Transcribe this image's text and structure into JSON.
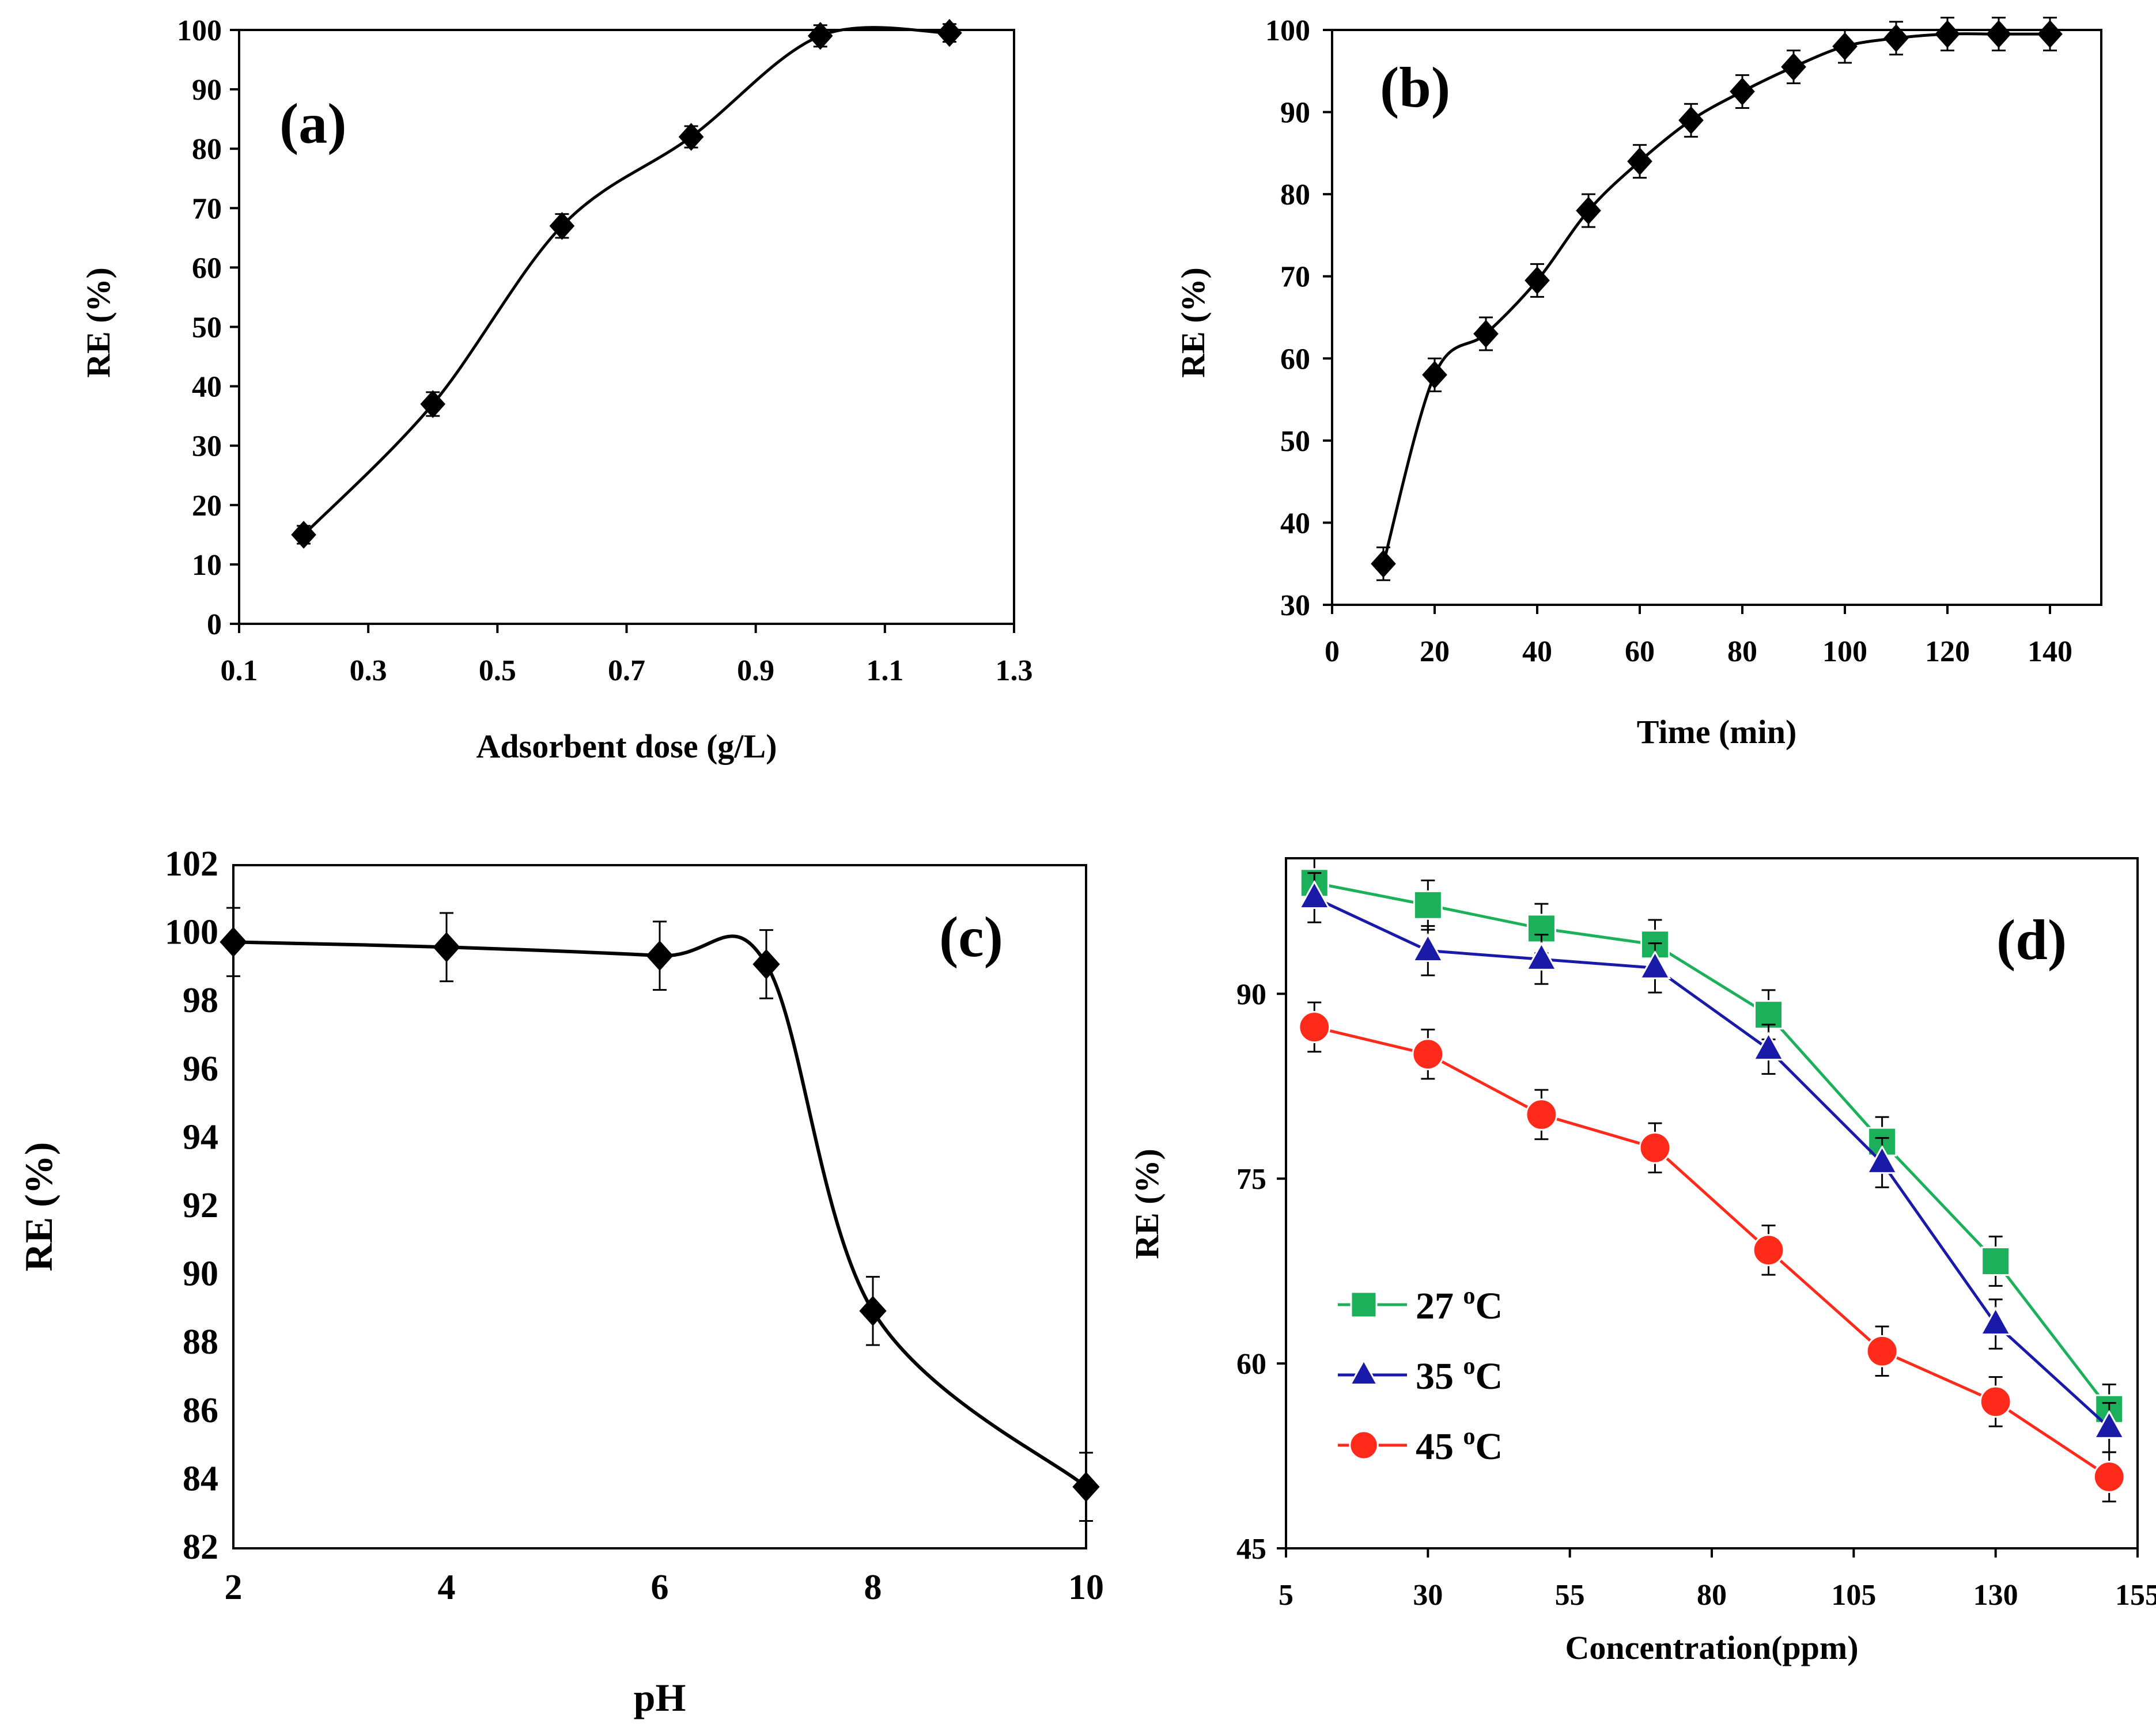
{
  "chart_data": [
    {
      "id": "a",
      "type": "line",
      "panel_label": "(a)",
      "title": "",
      "xlabel": "Adsorbent dose (g/L)",
      "ylabel": "RE (%)",
      "xlim": [
        0.1,
        1.3
      ],
      "ylim": [
        0,
        100
      ],
      "xticks": [
        "0.1",
        "0.3",
        "0.5",
        "0.7",
        "0.9",
        "1.1",
        "1.3"
      ],
      "yticks": [
        "0",
        "10",
        "20",
        "30",
        "40",
        "50",
        "60",
        "70",
        "80",
        "90",
        "100"
      ],
      "grid": false,
      "smooth": true,
      "series": [
        {
          "name": "RE",
          "color": "#000000",
          "marker": "diamond",
          "x": [
            0.2,
            0.4,
            0.6,
            0.8,
            1.0,
            1.2
          ],
          "y": [
            15,
            37,
            67,
            82,
            99,
            99.5
          ],
          "error": [
            1.5,
            2,
            2,
            1.8,
            1.8,
            1.5
          ]
        }
      ]
    },
    {
      "id": "b",
      "type": "line",
      "panel_label": "(b)",
      "title": "",
      "xlabel": "Time (min)",
      "ylabel": "RE (%)",
      "xlim": [
        0,
        150
      ],
      "ylim": [
        30,
        100
      ],
      "xticks": [
        "0",
        "20",
        "40",
        "60",
        "80",
        "100",
        "120",
        "140"
      ],
      "yticks": [
        "30",
        "40",
        "50",
        "60",
        "70",
        "80",
        "90",
        "100"
      ],
      "grid": false,
      "smooth": true,
      "series": [
        {
          "name": "RE",
          "color": "#000000",
          "marker": "diamond",
          "x": [
            10,
            20,
            30,
            40,
            50,
            60,
            70,
            80,
            90,
            100,
            110,
            120,
            130,
            140
          ],
          "y": [
            35,
            58,
            63,
            69.5,
            78,
            84,
            89,
            92.5,
            95.5,
            98,
            99,
            99.5,
            99.5,
            99.5
          ],
          "error": [
            2,
            2,
            2,
            2,
            2,
            2,
            2,
            2,
            2,
            2,
            2,
            2,
            2,
            2
          ]
        }
      ]
    },
    {
      "id": "c",
      "type": "line",
      "panel_label": "(c)",
      "title": "",
      "xlabel": "pH",
      "ylabel": "RE (%)",
      "xlim": [
        2,
        10
      ],
      "ylim": [
        82,
        102
      ],
      "xticks": [
        "2",
        "4",
        "6",
        "8",
        "10"
      ],
      "yticks": [
        "82",
        "84",
        "86",
        "88",
        "90",
        "92",
        "94",
        "96",
        "98",
        "100",
        "102"
      ],
      "grid": false,
      "smooth": true,
      "series": [
        {
          "name": "RE",
          "color": "#000000",
          "marker": "diamond",
          "x": [
            2,
            4,
            6,
            7,
            8,
            10
          ],
          "y": [
            99.75,
            99.6,
            99.35,
            99.1,
            88.95,
            83.8
          ],
          "error": [
            1,
            1,
            1,
            1,
            1,
            1
          ]
        }
      ]
    },
    {
      "id": "d",
      "type": "line",
      "panel_label": "(d)",
      "title": "",
      "xlabel": "Concentration(ppm)",
      "ylabel": "RE (%)",
      "xlim": [
        5,
        155
      ],
      "ylim": [
        45,
        101
      ],
      "xticks": [
        "5",
        "30",
        "55",
        "80",
        "105",
        "130",
        "155"
      ],
      "yticks": [
        "45",
        "60",
        "75",
        "90"
      ],
      "grid": false,
      "smooth": false,
      "legend_position": "bottom-left",
      "series": [
        {
          "name": "27 ",
          "unit_sup": "o",
          "unit_rest": "C",
          "color": "#1db05a",
          "marker": "square",
          "x": [
            10,
            30,
            50,
            70,
            90,
            110,
            130,
            150
          ],
          "y": [
            99,
            97.2,
            95.3,
            94,
            88.3,
            78,
            68.3,
            56.3
          ],
          "error": [
            2,
            2,
            2,
            2,
            2,
            2,
            2,
            2
          ]
        },
        {
          "name": "35 ",
          "unit_sup": "o",
          "unit_rest": "C",
          "color": "#1a1aa8",
          "marker": "triangle",
          "x": [
            10,
            30,
            50,
            70,
            90,
            110,
            130,
            150
          ],
          "y": [
            97.8,
            93.5,
            92.8,
            92.1,
            85.5,
            76.3,
            63.2,
            54.8
          ],
          "error": [
            2,
            2,
            2,
            2,
            2,
            2,
            2,
            2
          ]
        },
        {
          "name": "45 ",
          "unit_sup": "o",
          "unit_rest": "C",
          "color": "#ff2a1a",
          "marker": "circle",
          "x": [
            10,
            30,
            50,
            70,
            90,
            110,
            130,
            150
          ],
          "y": [
            87.3,
            85.1,
            80.2,
            77.5,
            69.2,
            61,
            56.9,
            50.8
          ],
          "error": [
            2,
            2,
            2,
            2,
            2,
            2,
            2,
            2
          ]
        }
      ]
    }
  ]
}
